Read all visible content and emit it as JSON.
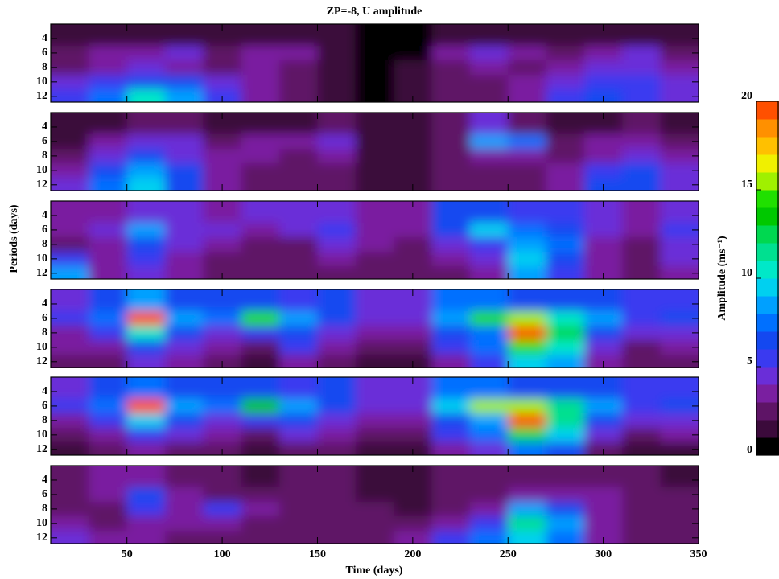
{
  "chart_data": {
    "type": "heatmap",
    "title": "ZP=-8, U amplitude",
    "x_label": "Time (days)",
    "y_label": "Periods (days)",
    "colorbar_label": "Amplitude (ms⁻¹)",
    "xlim": [
      10,
      350
    ],
    "xticks": [
      50,
      100,
      150,
      200,
      250,
      300,
      350
    ],
    "ylim": [
      2,
      12.8
    ],
    "yticks": [
      4,
      6,
      8,
      10,
      12
    ],
    "zlim": [
      0,
      20
    ],
    "zticks": [
      0,
      5,
      10,
      15,
      20
    ],
    "colors": [
      "#000000",
      "#3b0a3b",
      "#5e1466",
      "#7a1fa0",
      "#6a2ed8",
      "#3a3af0",
      "#1448f0",
      "#0070ff",
      "#00a0ff",
      "#00d0f0",
      "#00e8c8",
      "#00e090",
      "#00d850",
      "#00c800",
      "#20e000",
      "#a0f000",
      "#f0f000",
      "#ffc000",
      "#ff9000",
      "#ff5000"
    ],
    "x": [
      20,
      40,
      60,
      80,
      100,
      120,
      140,
      160,
      180,
      200,
      220,
      240,
      260,
      280,
      300,
      320,
      340
    ],
    "y": [
      4,
      6,
      8,
      10,
      12
    ],
    "panels": [
      {
        "values": [
          [
            1,
            1,
            1,
            1,
            1,
            1,
            1,
            1,
            0,
            0,
            1,
            1,
            1,
            1,
            1,
            1,
            1
          ],
          [
            2,
            3,
            3,
            4,
            2,
            3,
            3,
            1,
            0,
            0,
            3,
            4,
            3,
            2,
            3,
            4,
            2
          ],
          [
            2,
            3,
            4,
            3,
            2,
            3,
            2,
            1,
            0,
            1,
            2,
            3,
            2,
            3,
            4,
            4,
            3
          ],
          [
            4,
            5,
            6,
            6,
            4,
            3,
            2,
            1,
            0,
            1,
            2,
            2,
            3,
            4,
            5,
            5,
            4
          ],
          [
            5,
            7,
            10,
            8,
            5,
            3,
            2,
            1,
            0,
            1,
            2,
            2,
            3,
            5,
            6,
            5,
            4
          ]
        ]
      },
      {
        "values": [
          [
            1,
            1,
            2,
            2,
            1,
            1,
            1,
            2,
            1,
            1,
            2,
            4,
            2,
            1,
            1,
            2,
            1
          ],
          [
            1,
            3,
            4,
            4,
            2,
            3,
            3,
            4,
            1,
            1,
            2,
            8,
            7,
            2,
            3,
            3,
            2
          ],
          [
            2,
            4,
            6,
            4,
            3,
            3,
            2,
            3,
            1,
            1,
            2,
            3,
            3,
            2,
            3,
            4,
            3
          ],
          [
            3,
            6,
            8,
            6,
            3,
            2,
            2,
            2,
            1,
            1,
            2,
            2,
            2,
            3,
            5,
            6,
            4
          ],
          [
            4,
            7,
            9,
            6,
            3,
            2,
            2,
            2,
            1,
            1,
            2,
            2,
            2,
            3,
            6,
            6,
            4
          ]
        ]
      },
      {
        "values": [
          [
            3,
            3,
            4,
            4,
            3,
            4,
            4,
            4,
            3,
            3,
            6,
            6,
            5,
            5,
            4,
            3,
            4
          ],
          [
            3,
            4,
            8,
            4,
            4,
            3,
            4,
            5,
            3,
            3,
            6,
            9,
            7,
            6,
            4,
            3,
            5
          ],
          [
            2,
            3,
            6,
            4,
            3,
            2,
            2,
            4,
            3,
            2,
            4,
            5,
            8,
            7,
            3,
            2,
            4
          ],
          [
            5,
            3,
            5,
            3,
            2,
            2,
            2,
            3,
            2,
            2,
            3,
            4,
            9,
            6,
            3,
            2,
            4
          ],
          [
            8,
            3,
            4,
            3,
            2,
            2,
            2,
            2,
            2,
            2,
            2,
            3,
            8,
            5,
            3,
            2,
            3
          ]
        ]
      },
      {
        "values": [
          [
            4,
            6,
            8,
            6,
            6,
            6,
            5,
            6,
            4,
            4,
            7,
            7,
            6,
            6,
            6,
            5,
            5
          ],
          [
            5,
            7,
            19,
            8,
            7,
            14,
            8,
            6,
            4,
            4,
            8,
            14,
            15,
            10,
            8,
            5,
            6
          ],
          [
            3,
            5,
            10,
            6,
            4,
            5,
            6,
            4,
            3,
            3,
            6,
            7,
            19,
            12,
            6,
            4,
            4
          ],
          [
            3,
            3,
            6,
            4,
            3,
            2,
            5,
            3,
            2,
            2,
            5,
            7,
            14,
            10,
            4,
            2,
            3
          ],
          [
            2,
            2,
            4,
            3,
            2,
            1,
            3,
            2,
            1,
            1,
            3,
            5,
            9,
            8,
            3,
            2,
            2
          ]
        ]
      },
      {
        "values": [
          [
            4,
            6,
            7,
            6,
            6,
            6,
            5,
            6,
            4,
            4,
            7,
            7,
            6,
            6,
            6,
            5,
            5
          ],
          [
            5,
            7,
            19,
            8,
            7,
            13,
            8,
            6,
            4,
            4,
            9,
            15,
            15,
            11,
            8,
            5,
            6
          ],
          [
            3,
            5,
            9,
            6,
            4,
            5,
            6,
            4,
            3,
            3,
            6,
            8,
            19,
            11,
            6,
            4,
            4
          ],
          [
            2,
            3,
            5,
            4,
            3,
            2,
            4,
            3,
            2,
            2,
            5,
            7,
            12,
            9,
            4,
            2,
            3
          ],
          [
            1,
            2,
            3,
            2,
            2,
            1,
            2,
            2,
            1,
            1,
            3,
            4,
            7,
            6,
            2,
            1,
            1
          ]
        ]
      },
      {
        "values": [
          [
            2,
            3,
            3,
            2,
            2,
            1,
            2,
            2,
            1,
            1,
            2,
            2,
            2,
            2,
            2,
            2,
            1
          ],
          [
            2,
            3,
            6,
            3,
            2,
            2,
            2,
            2,
            1,
            1,
            2,
            2,
            3,
            3,
            3,
            2,
            2
          ],
          [
            2,
            2,
            5,
            3,
            5,
            3,
            2,
            2,
            2,
            1,
            2,
            3,
            8,
            6,
            3,
            2,
            2
          ],
          [
            3,
            2,
            3,
            3,
            3,
            2,
            2,
            2,
            2,
            2,
            3,
            5,
            11,
            8,
            3,
            2,
            2
          ],
          [
            4,
            3,
            3,
            2,
            2,
            2,
            2,
            2,
            2,
            3,
            5,
            7,
            9,
            7,
            3,
            2,
            2
          ]
        ]
      }
    ]
  }
}
